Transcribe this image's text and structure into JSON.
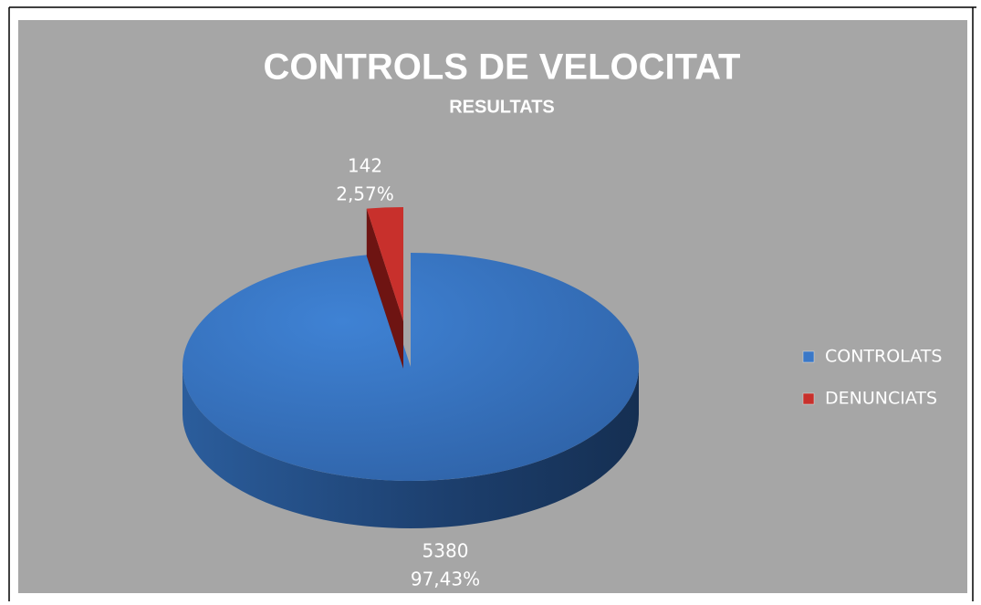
{
  "chart_data": {
    "type": "pie",
    "title": "CONTROLS DE VELOCITAT",
    "subtitle": "RESULTATS",
    "categories": [
      "CONTROLATS",
      "DENUNCIATS"
    ],
    "values": [
      5380,
      142
    ],
    "percentages": [
      97.43,
      2.57
    ],
    "percentage_labels": [
      "97,43%",
      "2,57%"
    ],
    "colors": [
      "#3a78c8",
      "#c8302c"
    ],
    "exploded": [
      false,
      true
    ],
    "legend": "right"
  }
}
